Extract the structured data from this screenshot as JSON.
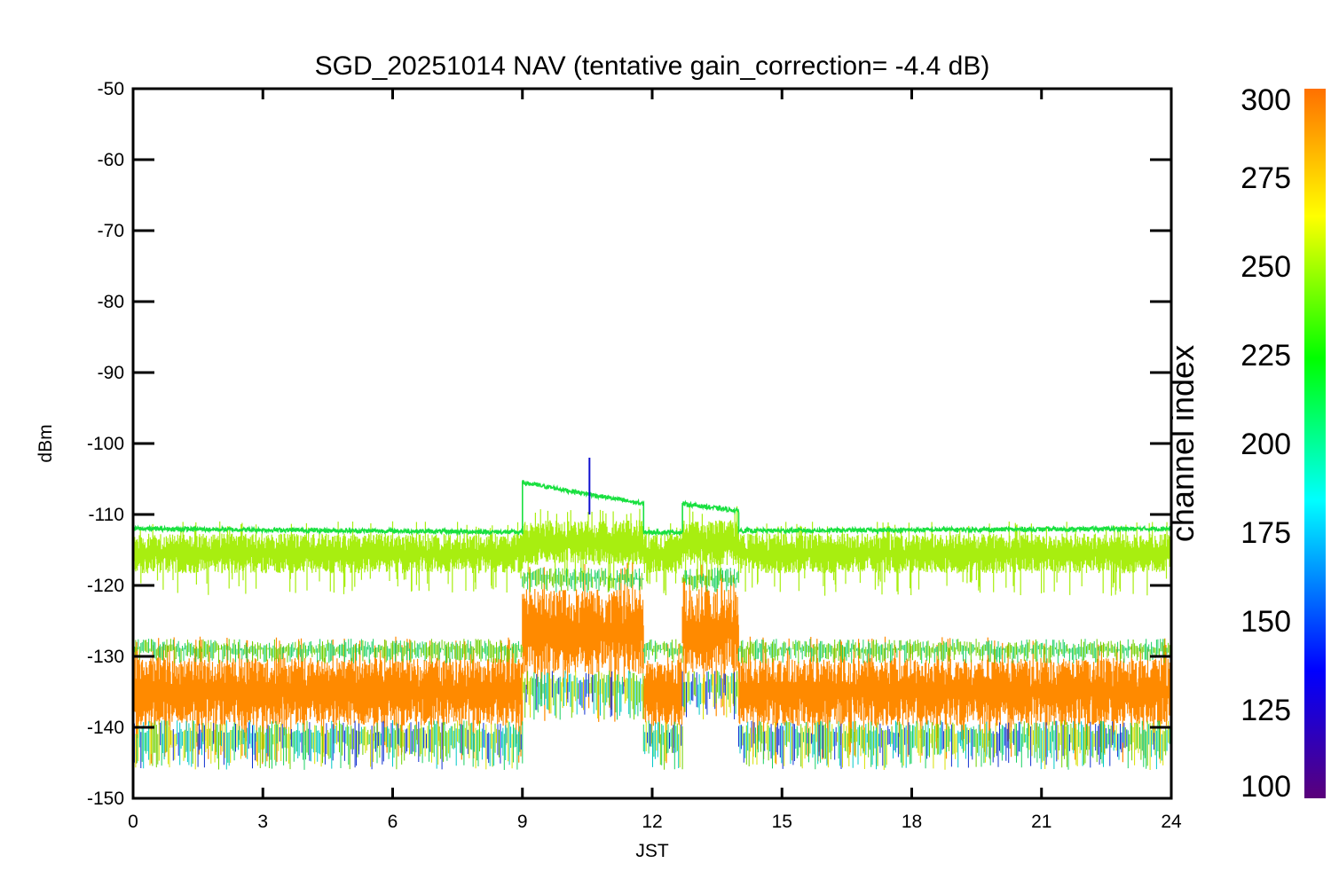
{
  "chart_data": {
    "type": "line",
    "title": "SGD_20251014 NAV (tentative gain_correction= -4.4 dB)",
    "xlabel": "JST",
    "ylabel": "dBm",
    "xlim": [
      0,
      24
    ],
    "ylim": [
      -150,
      -50
    ],
    "x_ticks": [
      0,
      3,
      6,
      9,
      12,
      15,
      18,
      21,
      24
    ],
    "x_tick_labels": [
      "0",
      "3",
      "6",
      "9",
      "12",
      "15",
      "18",
      "21",
      "24"
    ],
    "y_ticks": [
      -50,
      -60,
      -70,
      -80,
      -90,
      -100,
      -110,
      -120,
      -130,
      -140,
      -150
    ],
    "y_tick_labels": [
      "-50",
      "-60",
      "-70",
      "-80",
      "-90",
      "-100",
      "-110",
      "-120",
      "-130",
      "-140",
      "-150"
    ],
    "colorbar": {
      "label": "channel index",
      "range": [
        100,
        300
      ],
      "ticks": [
        300,
        275,
        250,
        225,
        200,
        175,
        150,
        125,
        100
      ],
      "tick_labels": [
        "300",
        "275",
        "250",
        "225",
        "200",
        "175",
        "150",
        "125",
        "100"
      ],
      "colors": [
        "#5a007a",
        "#0000ff",
        "#00ffff",
        "#00ff00",
        "#ffff00",
        "#ff7000"
      ]
    },
    "series": [
      {
        "name": "strong green channel",
        "channel_index": 225,
        "color": "#19e040",
        "segments": [
          {
            "x": [
              0,
              9
            ],
            "y_center": [
              -112,
              -112.5
            ],
            "noise": 0.3
          },
          {
            "x": [
              9,
              11.8
            ],
            "y_center": [
              -105.5,
              -108.5
            ],
            "noise": 0.3
          },
          {
            "x": [
              11.8,
              12.7
            ],
            "y_center": [
              -112.5,
              -112.5
            ],
            "noise": 0.3
          },
          {
            "x": [
              12.7,
              14
            ],
            "y_center": [
              -108.5,
              -109.5
            ],
            "noise": 0.3
          },
          {
            "x": [
              14,
              24
            ],
            "y_center": [
              -112.3,
              -112
            ],
            "noise": 0.3
          }
        ]
      },
      {
        "name": "yellow-green channel band",
        "channel_index": 255,
        "color": "#a8ee10",
        "segments": [
          {
            "x": [
              0,
              9
            ],
            "y_range": [
              -119,
              -112
            ]
          },
          {
            "x": [
              9,
              11.8
            ],
            "y_range": [
              -118,
              -110
            ]
          },
          {
            "x": [
              11.8,
              12.7
            ],
            "y_range": [
              -119,
              -112
            ]
          },
          {
            "x": [
              12.7,
              14
            ],
            "y_range": [
              -118,
              -110
            ]
          },
          {
            "x": [
              14,
              24
            ],
            "y_range": [
              -119,
              -112
            ]
          }
        ]
      },
      {
        "name": "orange channel band",
        "channel_index": 295,
        "color": "#ff8a00",
        "segments": [
          {
            "x": [
              0,
              9
            ],
            "y_range": [
              -141,
              -129
            ]
          },
          {
            "x": [
              9,
              11.8
            ],
            "y_range": [
              -134,
              -119
            ]
          },
          {
            "x": [
              11.8,
              12.7
            ],
            "y_range": [
              -141,
              -129
            ]
          },
          {
            "x": [
              12.7,
              14
            ],
            "y_range": [
              -134,
              -119
            ]
          },
          {
            "x": [
              14,
              24
            ],
            "y_range": [
              -141,
              -129
            ]
          }
        ]
      },
      {
        "name": "blue spike",
        "channel_index": 130,
        "color": "#1010d0",
        "points": [
          [
            10.55,
            -102
          ],
          [
            10.55,
            -110
          ]
        ]
      }
    ]
  }
}
